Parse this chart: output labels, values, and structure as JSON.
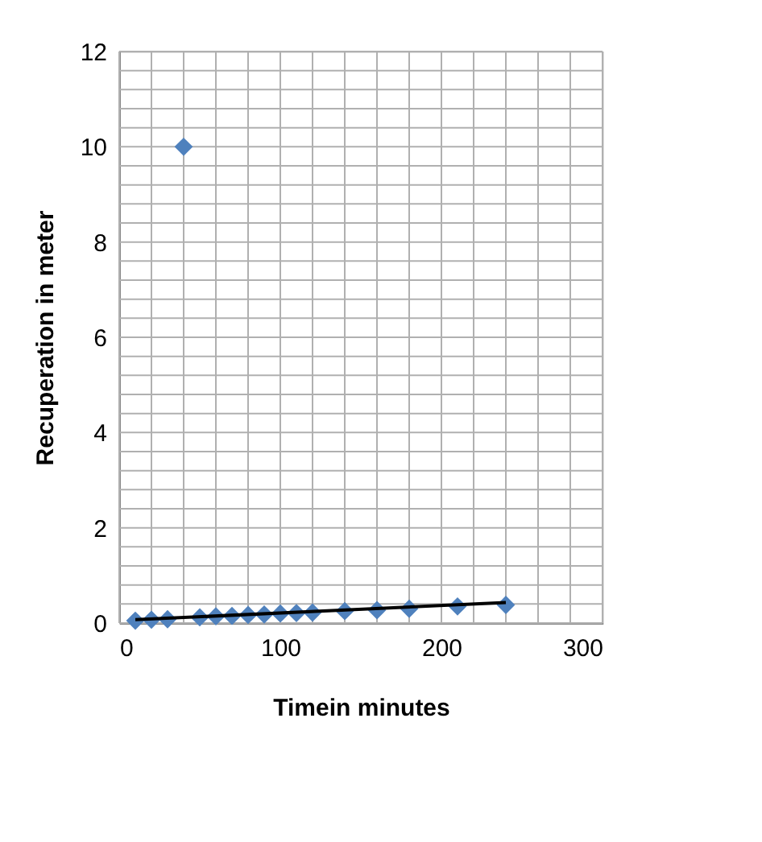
{
  "chart_data": {
    "type": "scatter",
    "xlabel": "Timein minutes",
    "ylabel": "Recuperation in meter",
    "marker": "diamond",
    "grid": true,
    "series": [
      {
        "color": "#4f81bd",
        "x": [
          10,
          20,
          30,
          40,
          50,
          60,
          70,
          80,
          90,
          100,
          110,
          120,
          140,
          160,
          180,
          210,
          240
        ],
        "values": [
          0.05,
          0.07,
          0.08,
          10,
          0.12,
          0.14,
          0.15,
          0.17,
          0.18,
          0.2,
          0.21,
          0.22,
          0.25,
          0.27,
          0.3,
          0.35,
          0.38
        ]
      },
      {
        "type": "line",
        "marker": "none",
        "line_style": "solid",
        "color": "#000000",
        "x": [
          10,
          240
        ],
        "values": [
          0.07,
          0.43
        ]
      }
    ],
    "xlim": [
      0,
      300
    ],
    "xticks": [
      0,
      {
        "value": 20,
        "label": null
      },
      {
        "value": 40,
        "label": null
      },
      {
        "value": 60,
        "label": null
      },
      {
        "value": 80,
        "label": null
      },
      100,
      {
        "value": 120,
        "label": null
      },
      {
        "value": 140,
        "label": null
      },
      {
        "value": 160,
        "label": null
      },
      {
        "value": 180,
        "label": null
      },
      200,
      {
        "value": 220,
        "label": null
      },
      {
        "value": 240,
        "label": null
      },
      {
        "value": 260,
        "label": null
      },
      {
        "value": 280,
        "label": null
      },
      300
    ],
    "ylim": [
      0,
      12
    ],
    "yticks": [
      0,
      {
        "value": 0.4,
        "label": null
      },
      {
        "value": 0.8,
        "label": null
      },
      {
        "value": 1.2,
        "label": null
      },
      {
        "value": 1.6,
        "label": null
      },
      2,
      {
        "value": 2.4,
        "label": null
      },
      {
        "value": 2.8,
        "label": null
      },
      {
        "value": 3.2,
        "label": null
      },
      {
        "value": 3.6,
        "label": null
      },
      4,
      {
        "value": 4.4,
        "label": null
      },
      {
        "value": 4.8,
        "label": null
      },
      {
        "value": 5.2,
        "label": null
      },
      {
        "value": 5.6,
        "label": null
      },
      6,
      {
        "value": 6.4,
        "label": null
      },
      {
        "value": 6.8,
        "label": null
      },
      {
        "value": 7.2,
        "label": null
      },
      {
        "value": 7.6,
        "label": null
      },
      8,
      {
        "value": 8.4,
        "label": null
      },
      {
        "value": 8.8,
        "label": null
      },
      {
        "value": 9.2,
        "label": null
      },
      {
        "value": 9.6,
        "label": null
      },
      10,
      {
        "value": 10.4,
        "label": null
      },
      {
        "value": 10.8,
        "label": null
      },
      {
        "value": 11.2,
        "label": null
      },
      {
        "value": 11.6,
        "label": null
      },
      12
    ]
  }
}
